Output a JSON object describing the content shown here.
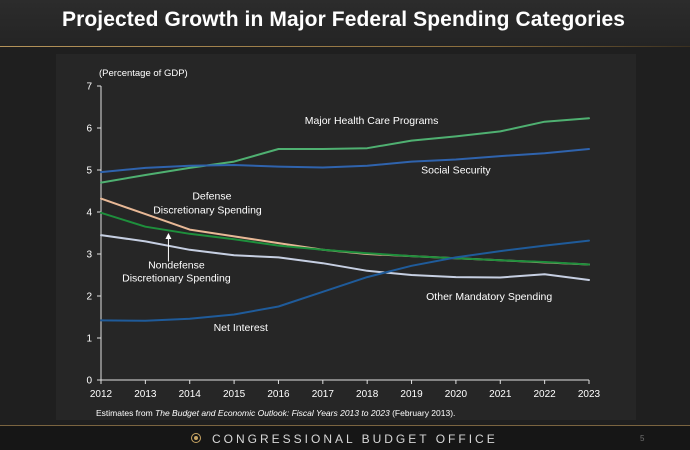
{
  "title": "Projected Growth in Major Federal Spending Categories",
  "footer": {
    "organization": "CONGRESSIONAL BUDGET OFFICE",
    "page_number": "5"
  },
  "source_note": {
    "prefix": "Estimates from ",
    "publication": "The Budget and Economic Outlook: Fiscal Years 2013 to 2023",
    "suffix": " (February 2013)."
  },
  "chart_data": {
    "type": "line",
    "ylabel": "(Percentage of GDP)",
    "xlabel": "",
    "x": [
      2012,
      2013,
      2014,
      2015,
      2016,
      2017,
      2018,
      2019,
      2020,
      2021,
      2022,
      2023
    ],
    "xlim": [
      2012,
      2023
    ],
    "ylim": [
      0,
      7
    ],
    "y_ticks": [
      0,
      1,
      2,
      3,
      4,
      5,
      6,
      7
    ],
    "grid": false,
    "series": [
      {
        "name": "Major Health Care Programs",
        "color": "#4fb071",
        "values": [
          4.7,
          4.88,
          5.05,
          5.2,
          5.5,
          5.5,
          5.52,
          5.7,
          5.8,
          5.92,
          6.15,
          6.23
        ]
      },
      {
        "name": "Social Security",
        "color": "#2f63ad",
        "values": [
          4.95,
          5.05,
          5.1,
          5.12,
          5.08,
          5.06,
          5.1,
          5.2,
          5.25,
          5.33,
          5.4,
          5.5
        ]
      },
      {
        "name": "Defense Discretionary Spending",
        "color": "#e8b896",
        "values": [
          4.32,
          3.95,
          3.58,
          3.42,
          3.26,
          3.1,
          3.0,
          2.95,
          2.9,
          2.85,
          2.8,
          2.75
        ]
      },
      {
        "name": "Nondefense Discretionary Spending",
        "color": "#1e8f3c",
        "values": [
          3.98,
          3.65,
          3.48,
          3.35,
          3.2,
          3.1,
          3.02,
          2.95,
          2.9,
          2.85,
          2.81,
          2.75
        ]
      },
      {
        "name": "Other Mandatory Spending",
        "color": "#c6cfe2",
        "values": [
          3.45,
          3.3,
          3.1,
          2.97,
          2.92,
          2.78,
          2.6,
          2.5,
          2.45,
          2.44,
          2.52,
          2.38
        ]
      },
      {
        "name": "Net Interest",
        "color": "#1f5b9a",
        "values": [
          1.42,
          1.41,
          1.46,
          1.56,
          1.75,
          2.1,
          2.45,
          2.72,
          2.92,
          3.07,
          3.2,
          3.32
        ]
      }
    ],
    "annotations": [
      {
        "text": "Major Health Care Programs",
        "x": 2018.1,
        "y": 6.1
      },
      {
        "text": "Social Security",
        "x": 2020.0,
        "y": 4.92
      },
      {
        "text": "Defense",
        "x": 2014.5,
        "y": 4.3
      },
      {
        "text": "Discretionary Spending",
        "x": 2014.4,
        "y": 3.97
      },
      {
        "text": "Nondefense",
        "x": 2013.7,
        "y": 2.66
      },
      {
        "text": "Discretionary Spending",
        "x": 2013.7,
        "y": 2.34
      },
      {
        "text": "Other Mandatory Spending",
        "x": 2020.75,
        "y": 1.9
      },
      {
        "text": "Net Interest",
        "x": 2015.15,
        "y": 1.17
      }
    ]
  }
}
